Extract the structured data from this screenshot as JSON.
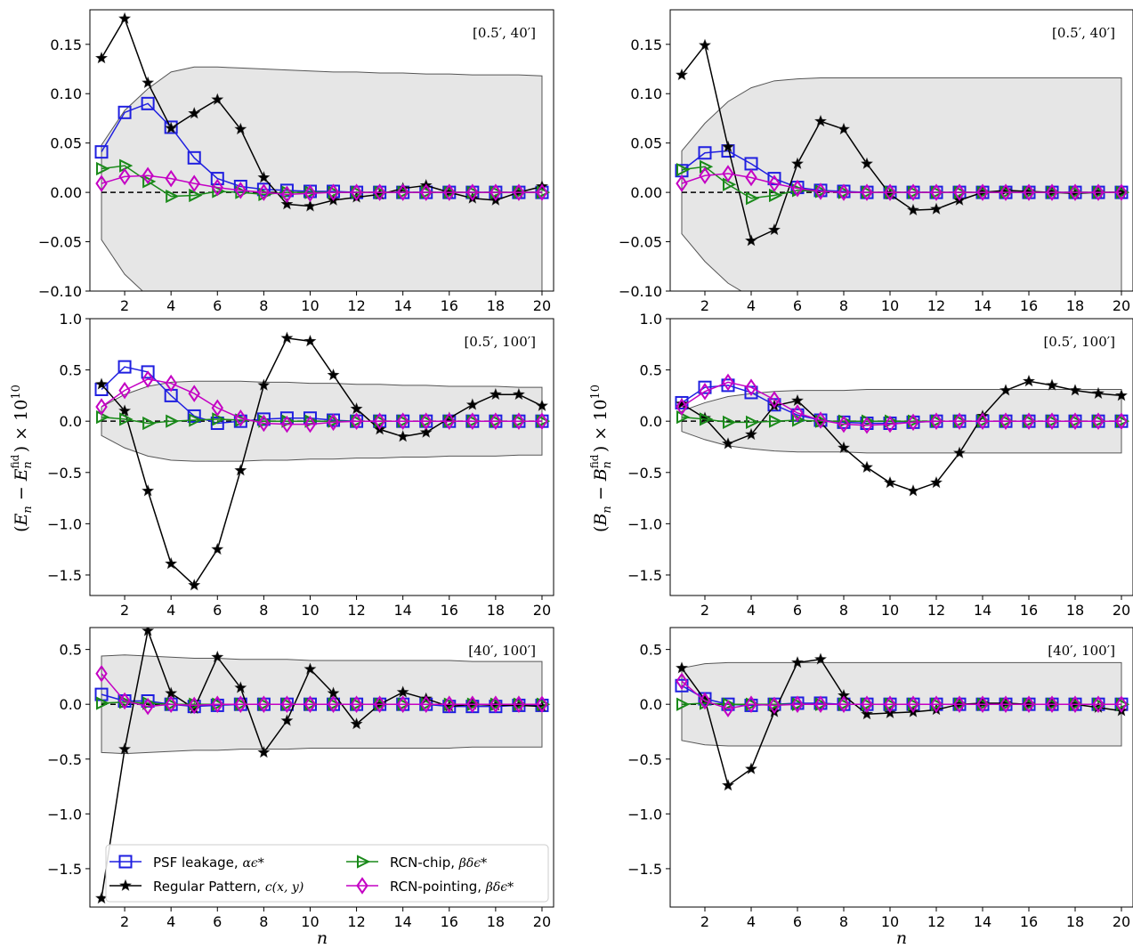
{
  "figure": {
    "xlabel": "n",
    "ylabel_left": "(E_n − E_n^fid) × 10^10",
    "ylabel_right": "(B_n − B_n^fid) × 10^10",
    "ylabel_left_parts": {
      "open": "(",
      "var": "E",
      "sub": "n",
      "minus": " − ",
      "var2": "E",
      "sub2": "n",
      "sup2": "fid",
      "close": ") × 10",
      "exp": "10"
    },
    "ylabel_right_parts": {
      "open": "(",
      "var": "B",
      "sub": "n",
      "minus": " − ",
      "var2": "B",
      "sub2": "n",
      "sup2": "fid",
      "close": ") × 10",
      "exp": "10"
    }
  },
  "legend": {
    "entries": [
      {
        "label": "PSF leakage, ",
        "math": "αϵ*",
        "series": "psf"
      },
      {
        "label": "RCN-chip, ",
        "math": "βδϵ*",
        "series": "chip"
      },
      {
        "label": "Regular Pattern, ",
        "math": "c(x, y)",
        "series": "reg"
      },
      {
        "label": "RCN-pointing, ",
        "math": "βδϵ*",
        "series": "point"
      }
    ]
  },
  "colors": {
    "psf": "#1f1fe0",
    "reg": "#000000",
    "chip": "#1a8a1a",
    "point": "#c400c4",
    "band_fill": "#e6e6e6",
    "band_edge": "#555555"
  },
  "chart_data": [
    {
      "type": "line",
      "panel": "E-mode [0.5', 40']",
      "annotation": "[0.5′, 40′]",
      "x": [
        1,
        2,
        3,
        4,
        5,
        6,
        7,
        8,
        9,
        10,
        11,
        12,
        13,
        14,
        15,
        16,
        17,
        18,
        19,
        20
      ],
      "xlim": [
        0.5,
        20.5
      ],
      "ylim": [
        -0.1,
        0.185
      ],
      "xticks": [
        2,
        4,
        6,
        8,
        10,
        12,
        14,
        16,
        18,
        20
      ],
      "yticks": [
        -0.1,
        -0.05,
        0.0,
        0.05,
        0.1,
        0.15
      ],
      "ytick_labels": [
        "−0.10",
        "−0.05",
        "0.00",
        "0.05",
        "0.10",
        "0.15"
      ],
      "band": [
        0.048,
        0.083,
        0.105,
        0.122,
        0.127,
        0.127,
        0.126,
        0.125,
        0.124,
        0.123,
        0.122,
        0.122,
        0.121,
        0.121,
        0.12,
        0.12,
        0.119,
        0.119,
        0.119,
        0.118
      ],
      "series": [
        {
          "name": "PSF leakage",
          "key": "psf",
          "values": [
            0.041,
            0.081,
            0.09,
            0.066,
            0.035,
            0.014,
            0.006,
            0.003,
            0.002,
            0.001,
            0.001,
            0.0,
            0.0,
            0.0,
            0.0,
            0.0,
            0.0,
            0.0,
            0.0,
            0.0
          ]
        },
        {
          "name": "Regular Pattern",
          "key": "reg",
          "values": [
            0.136,
            0.176,
            0.111,
            0.065,
            0.08,
            0.094,
            0.064,
            0.015,
            -0.012,
            -0.014,
            -0.008,
            -0.005,
            -0.002,
            0.004,
            0.007,
            0.0,
            -0.006,
            -0.008,
            0.0,
            0.006
          ]
        },
        {
          "name": "RCN-chip",
          "key": "chip",
          "values": [
            0.024,
            0.027,
            0.011,
            -0.004,
            -0.003,
            0.001,
            0.0,
            -0.002,
            0.0,
            0.0,
            0.0,
            0.0,
            0.0,
            0.0,
            0.0,
            0.0,
            0.0,
            0.0,
            0.0,
            0.0
          ]
        },
        {
          "name": "RCN-pointing",
          "key": "point",
          "values": [
            0.009,
            0.016,
            0.017,
            0.014,
            0.009,
            0.005,
            0.002,
            0.0,
            -0.002,
            -0.001,
            0.0,
            0.0,
            0.0,
            0.0,
            0.0,
            0.0,
            0.0,
            0.0,
            0.0,
            0.0
          ]
        }
      ]
    },
    {
      "type": "line",
      "panel": "B-mode [0.5', 40']",
      "annotation": "[0.5′, 40′]",
      "x": [
        1,
        2,
        3,
        4,
        5,
        6,
        7,
        8,
        9,
        10,
        11,
        12,
        13,
        14,
        15,
        16,
        17,
        18,
        19,
        20
      ],
      "xlim": [
        0.5,
        20.5
      ],
      "ylim": [
        -0.1,
        0.185
      ],
      "xticks": [
        2,
        4,
        6,
        8,
        10,
        12,
        14,
        16,
        18,
        20
      ],
      "yticks": [
        -0.1,
        -0.05,
        0.0,
        0.05,
        0.1,
        0.15
      ],
      "ytick_labels": [
        "−0.10",
        "−0.05",
        "0.00",
        "0.05",
        "0.10",
        "0.15"
      ],
      "band": [
        0.042,
        0.07,
        0.092,
        0.106,
        0.113,
        0.115,
        0.116,
        0.116,
        0.116,
        0.116,
        0.116,
        0.116,
        0.116,
        0.116,
        0.116,
        0.116,
        0.116,
        0.116,
        0.116,
        0.116
      ],
      "series": [
        {
          "name": "PSF leakage",
          "key": "psf",
          "values": [
            0.022,
            0.04,
            0.042,
            0.029,
            0.014,
            0.005,
            0.002,
            0.001,
            0.0,
            0.0,
            0.0,
            0.0,
            0.0,
            0.0,
            0.0,
            0.0,
            0.0,
            0.0,
            0.0,
            0.0
          ]
        },
        {
          "name": "Regular Pattern",
          "key": "reg",
          "values": [
            0.119,
            0.149,
            0.046,
            -0.049,
            -0.038,
            0.029,
            0.072,
            0.064,
            0.029,
            -0.002,
            -0.018,
            -0.017,
            -0.008,
            0.0,
            0.002,
            0.001,
            0.0,
            -0.001,
            0.0,
            0.0
          ]
        },
        {
          "name": "RCN-chip",
          "key": "chip",
          "values": [
            0.023,
            0.026,
            0.008,
            -0.006,
            -0.003,
            0.002,
            0.001,
            0.0,
            0.0,
            0.0,
            0.0,
            0.0,
            0.0,
            0.0,
            0.0,
            0.0,
            0.0,
            0.0,
            0.0,
            0.0
          ]
        },
        {
          "name": "RCN-pointing",
          "key": "point",
          "values": [
            0.009,
            0.017,
            0.019,
            0.015,
            0.009,
            0.004,
            0.001,
            0.0,
            0.0,
            0.0,
            0.0,
            0.0,
            0.0,
            0.0,
            0.0,
            0.0,
            0.0,
            0.0,
            0.0,
            0.0
          ]
        }
      ]
    },
    {
      "type": "line",
      "panel": "E-mode [0.5', 100']",
      "annotation": "[0.5′, 100′]",
      "x": [
        1,
        2,
        3,
        4,
        5,
        6,
        7,
        8,
        9,
        10,
        11,
        12,
        13,
        14,
        15,
        16,
        17,
        18,
        19,
        20
      ],
      "xlim": [
        0.5,
        20.5
      ],
      "ylim": [
        -1.7,
        1.0
      ],
      "xticks": [
        2,
        4,
        6,
        8,
        10,
        12,
        14,
        16,
        18,
        20
      ],
      "yticks": [
        -1.5,
        -1.0,
        -0.5,
        0.0,
        0.5,
        1.0
      ],
      "ytick_labels": [
        "−1.5",
        "−1.0",
        "−0.5",
        "0.0",
        "0.5",
        "1.0"
      ],
      "band": [
        0.14,
        0.26,
        0.34,
        0.38,
        0.39,
        0.39,
        0.39,
        0.38,
        0.38,
        0.37,
        0.37,
        0.36,
        0.36,
        0.35,
        0.35,
        0.34,
        0.34,
        0.34,
        0.33,
        0.33
      ],
      "series": [
        {
          "name": "PSF leakage",
          "key": "psf",
          "values": [
            0.31,
            0.53,
            0.48,
            0.25,
            0.05,
            -0.02,
            0.0,
            0.02,
            0.03,
            0.03,
            0.01,
            0.0,
            0.0,
            0.0,
            0.0,
            0.0,
            0.0,
            0.0,
            0.0,
            0.0
          ]
        },
        {
          "name": "Regular Pattern",
          "key": "reg",
          "values": [
            0.36,
            0.1,
            -0.68,
            -1.39,
            -1.6,
            -1.25,
            -0.48,
            0.35,
            0.81,
            0.78,
            0.45,
            0.12,
            -0.08,
            -0.15,
            -0.11,
            0.03,
            0.16,
            0.26,
            0.26,
            0.15
          ]
        },
        {
          "name": "RCN-chip",
          "key": "chip",
          "values": [
            0.04,
            0.02,
            -0.02,
            0.0,
            0.01,
            0.02,
            0.01,
            0.0,
            0.0,
            0.0,
            0.0,
            0.0,
            0.0,
            0.0,
            0.0,
            0.0,
            0.0,
            0.0,
            0.0,
            0.0
          ]
        },
        {
          "name": "RCN-pointing",
          "key": "point",
          "values": [
            0.14,
            0.3,
            0.41,
            0.37,
            0.27,
            0.13,
            0.03,
            -0.02,
            -0.03,
            -0.03,
            -0.01,
            0.0,
            0.0,
            0.0,
            0.0,
            0.0,
            0.0,
            0.0,
            0.0,
            0.0
          ]
        }
      ]
    },
    {
      "type": "line",
      "panel": "B-mode [0.5', 100']",
      "annotation": "[0.5′, 100′]",
      "x": [
        1,
        2,
        3,
        4,
        5,
        6,
        7,
        8,
        9,
        10,
        11,
        12,
        13,
        14,
        15,
        16,
        17,
        18,
        19,
        20
      ],
      "xlim": [
        0.5,
        20.5
      ],
      "ylim": [
        -1.7,
        1.0
      ],
      "xticks": [
        2,
        4,
        6,
        8,
        10,
        12,
        14,
        16,
        18,
        20
      ],
      "yticks": [
        -1.5,
        -1.0,
        -0.5,
        0.0,
        0.5,
        1.0
      ],
      "ytick_labels": [
        "−1.5",
        "−1.0",
        "−0.5",
        "0.0",
        "0.5",
        "1.0"
      ],
      "band": [
        0.1,
        0.18,
        0.24,
        0.27,
        0.29,
        0.3,
        0.3,
        0.3,
        0.31,
        0.31,
        0.31,
        0.31,
        0.31,
        0.31,
        0.31,
        0.31,
        0.31,
        0.31,
        0.31,
        0.31
      ],
      "series": [
        {
          "name": "PSF leakage",
          "key": "psf",
          "values": [
            0.18,
            0.33,
            0.35,
            0.28,
            0.16,
            0.06,
            0.01,
            -0.01,
            -0.02,
            -0.02,
            -0.01,
            0.0,
            0.0,
            0.0,
            0.0,
            0.0,
            0.0,
            0.0,
            0.0,
            0.0
          ]
        },
        {
          "name": "Regular Pattern",
          "key": "reg",
          "values": [
            0.17,
            0.03,
            -0.22,
            -0.13,
            0.15,
            0.2,
            -0.01,
            -0.26,
            -0.45,
            -0.6,
            -0.68,
            -0.6,
            -0.31,
            0.05,
            0.3,
            0.39,
            0.35,
            0.3,
            0.27,
            0.25
          ]
        },
        {
          "name": "RCN-chip",
          "key": "chip",
          "values": [
            0.04,
            0.02,
            -0.01,
            -0.01,
            0.0,
            0.01,
            0.0,
            0.0,
            0.0,
            0.0,
            0.0,
            0.0,
            0.0,
            0.0,
            0.0,
            0.0,
            0.0,
            0.0,
            0.0,
            0.0
          ]
        },
        {
          "name": "RCN-pointing",
          "key": "point",
          "values": [
            0.14,
            0.29,
            0.38,
            0.33,
            0.21,
            0.08,
            0.01,
            -0.03,
            -0.04,
            -0.03,
            -0.01,
            0.0,
            0.0,
            0.0,
            0.0,
            0.0,
            0.0,
            0.0,
            0.0,
            0.0
          ]
        }
      ]
    },
    {
      "type": "line",
      "panel": "E-mode [40', 100']",
      "annotation": "[40′, 100′]",
      "x": [
        1,
        2,
        3,
        4,
        5,
        6,
        7,
        8,
        9,
        10,
        11,
        12,
        13,
        14,
        15,
        16,
        17,
        18,
        19,
        20
      ],
      "xlim": [
        0.5,
        20.5
      ],
      "ylim": [
        -1.85,
        0.7
      ],
      "xticks": [
        2,
        4,
        6,
        8,
        10,
        12,
        14,
        16,
        18,
        20
      ],
      "yticks": [
        -1.5,
        -1.0,
        -0.5,
        0.0,
        0.5
      ],
      "ytick_labels": [
        "−1.5",
        "−1.0",
        "−0.5",
        "0.0",
        "0.5"
      ],
      "band": [
        0.44,
        0.45,
        0.44,
        0.43,
        0.42,
        0.42,
        0.41,
        0.41,
        0.41,
        0.4,
        0.4,
        0.4,
        0.4,
        0.4,
        0.4,
        0.4,
        0.39,
        0.39,
        0.39,
        0.39
      ],
      "series": [
        {
          "name": "PSF leakage",
          "key": "psf",
          "values": [
            0.09,
            0.03,
            0.03,
            0.0,
            -0.02,
            -0.01,
            0.0,
            0.0,
            0.0,
            0.0,
            0.0,
            0.0,
            0.0,
            0.0,
            0.0,
            -0.02,
            -0.02,
            -0.02,
            -0.01,
            -0.01
          ]
        },
        {
          "name": "Regular Pattern",
          "key": "reg",
          "values": [
            -1.77,
            -0.41,
            0.67,
            0.1,
            -0.04,
            0.43,
            0.15,
            -0.44,
            -0.15,
            0.32,
            0.1,
            -0.18,
            0.0,
            0.11,
            0.05,
            -0.02,
            0.0,
            -0.01,
            -0.01,
            -0.02
          ]
        },
        {
          "name": "RCN-chip",
          "key": "chip",
          "values": [
            0.01,
            0.02,
            0.01,
            0.0,
            0.0,
            0.0,
            0.0,
            0.0,
            0.0,
            0.0,
            0.0,
            0.0,
            0.0,
            0.0,
            0.0,
            0.0,
            0.0,
            0.0,
            0.0,
            0.0
          ]
        },
        {
          "name": "RCN-pointing",
          "key": "point",
          "values": [
            0.28,
            0.03,
            -0.02,
            0.0,
            -0.01,
            0.0,
            0.0,
            0.0,
            0.0,
            0.0,
            0.0,
            0.0,
            0.0,
            0.0,
            0.0,
            0.0,
            0.0,
            0.0,
            0.0,
            0.0
          ]
        }
      ]
    },
    {
      "type": "line",
      "panel": "B-mode [40', 100']",
      "annotation": "[40′, 100′]",
      "x": [
        1,
        2,
        3,
        4,
        5,
        6,
        7,
        8,
        9,
        10,
        11,
        12,
        13,
        14,
        15,
        16,
        17,
        18,
        19,
        20
      ],
      "xlim": [
        0.5,
        20.5
      ],
      "ylim": [
        -1.85,
        0.7
      ],
      "xticks": [
        2,
        4,
        6,
        8,
        10,
        12,
        14,
        16,
        18,
        20
      ],
      "yticks": [
        -1.5,
        -1.0,
        -0.5,
        0.0,
        0.5
      ],
      "ytick_labels": [
        "−1.5",
        "−1.0",
        "−0.5",
        "0.0",
        "0.5"
      ],
      "band": [
        0.33,
        0.37,
        0.38,
        0.38,
        0.38,
        0.38,
        0.38,
        0.38,
        0.38,
        0.38,
        0.38,
        0.38,
        0.38,
        0.38,
        0.38,
        0.38,
        0.38,
        0.38,
        0.38,
        0.38
      ],
      "series": [
        {
          "name": "PSF leakage",
          "key": "psf",
          "values": [
            0.17,
            0.05,
            0.0,
            -0.01,
            0.0,
            0.01,
            0.01,
            0.0,
            0.0,
            0.0,
            0.0,
            0.0,
            0.0,
            0.0,
            0.0,
            0.0,
            0.0,
            0.0,
            0.0,
            0.0
          ]
        },
        {
          "name": "Regular Pattern",
          "key": "reg",
          "values": [
            0.33,
            0.04,
            -0.74,
            -0.59,
            -0.07,
            0.38,
            0.41,
            0.08,
            -0.09,
            -0.08,
            -0.07,
            -0.05,
            0.0,
            0.01,
            0.01,
            0.0,
            0.0,
            0.0,
            -0.03,
            -0.06
          ]
        },
        {
          "name": "RCN-chip",
          "key": "chip",
          "values": [
            0.0,
            0.01,
            0.0,
            0.0,
            0.0,
            0.0,
            0.0,
            0.0,
            0.0,
            0.0,
            0.0,
            0.0,
            0.0,
            0.0,
            0.0,
            0.0,
            0.0,
            0.0,
            0.0,
            0.0
          ]
        },
        {
          "name": "RCN-pointing",
          "key": "point",
          "values": [
            0.21,
            0.03,
            -0.04,
            0.0,
            -0.01,
            0.0,
            0.0,
            0.0,
            0.0,
            0.0,
            0.0,
            0.0,
            0.0,
            0.0,
            0.0,
            0.0,
            0.0,
            0.0,
            0.0,
            0.0
          ]
        }
      ]
    }
  ]
}
